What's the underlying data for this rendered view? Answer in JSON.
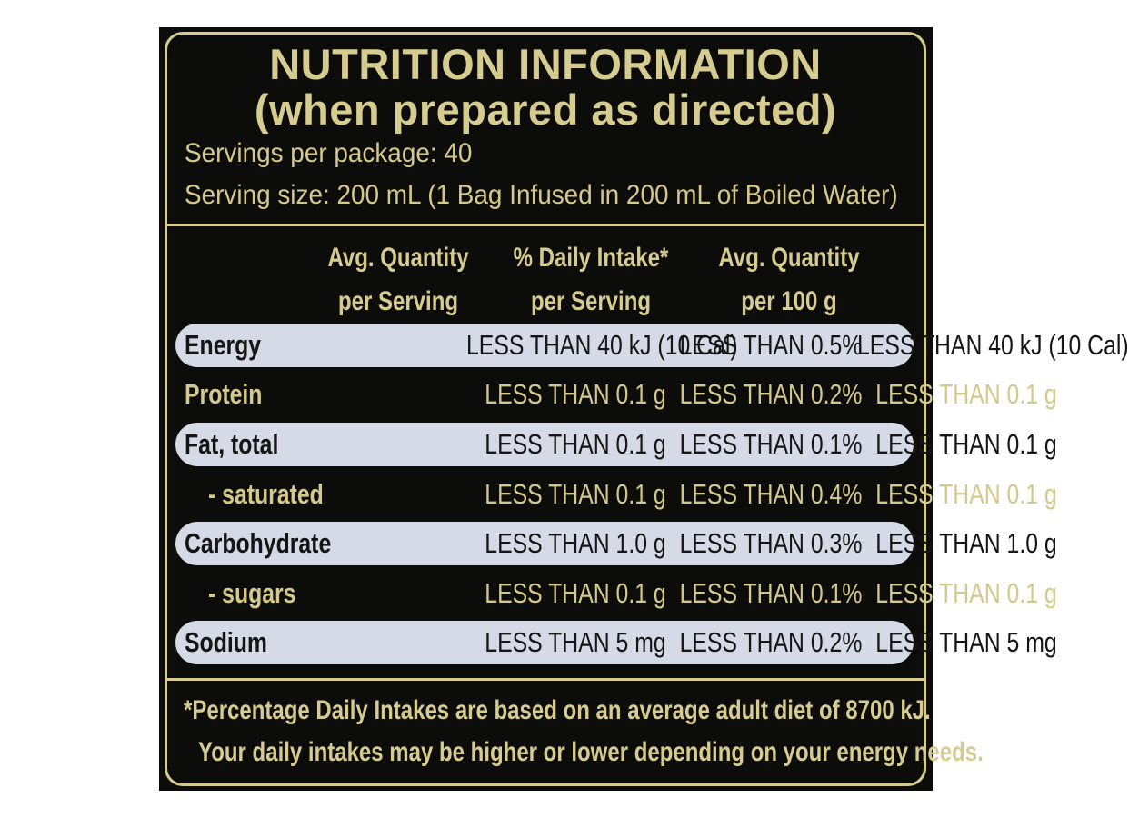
{
  "title": {
    "line1": "NUTRITION INFORMATION",
    "line2": "(when prepared as directed)"
  },
  "servings_per_package": "Servings per package: 40",
  "serving_size": "Serving size: 200 mL (1 Bag Infused in 200 mL of Boiled Water)",
  "columns": [
    {
      "line1": "Avg. Quantity",
      "line2": "per Serving"
    },
    {
      "line1": "% Daily Intake*",
      "line2": "per Serving"
    },
    {
      "line1": "Avg. Quantity",
      "line2": "per 100 g"
    }
  ],
  "rows": [
    {
      "label": "Energy",
      "per_serving": "LESS THAN 40 kJ (10 Cal)",
      "daily_intake": "LESS THAN 0.5%",
      "per_100g": "LESS THAN 40 kJ (10 Cal)"
    },
    {
      "label": "Protein",
      "per_serving": "LESS THAN 0.1 g",
      "daily_intake": "LESS THAN 0.2%",
      "per_100g": "LESS THAN 0.1 g"
    },
    {
      "label": "Fat, total",
      "per_serving": "LESS THAN 0.1 g",
      "daily_intake": "LESS THAN 0.1%",
      "per_100g": "LESS THAN 0.1 g"
    },
    {
      "label": "- saturated",
      "per_serving": "LESS THAN 0.1 g",
      "daily_intake": "LESS THAN 0.4%",
      "per_100g": "LESS THAN 0.1 g"
    },
    {
      "label": "Carbohydrate",
      "per_serving": "LESS THAN 1.0 g",
      "daily_intake": "LESS THAN 0.3%",
      "per_100g": "LESS THAN 1.0 g"
    },
    {
      "label": "- sugars",
      "per_serving": "LESS THAN 0.1 g",
      "daily_intake": "LESS THAN 0.1%",
      "per_100g": "LESS THAN 0.1 g"
    },
    {
      "label": "Sodium",
      "per_serving": "LESS THAN 5 mg",
      "daily_intake": "LESS THAN 0.2%",
      "per_100g": "LESS THAN 5 mg"
    }
  ],
  "footnote": {
    "line1": "*Percentage Daily Intakes are based on an average adult diet of 8700 kJ.",
    "line2": "Your daily intakes may be higher or lower depending on your energy needs."
  },
  "colors": {
    "background": "#0c0c0a",
    "gold": "#d7cc90",
    "row_highlight": "#d6d9e6"
  }
}
